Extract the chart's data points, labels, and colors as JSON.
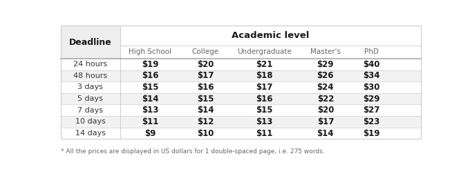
{
  "title": "Academic level",
  "deadline_label": "Deadline",
  "col_headers": [
    "High School",
    "College",
    "Undergraduate",
    "Master's",
    "PhD"
  ],
  "row_headers": [
    "24 hours",
    "48 hours",
    "3 days",
    "5 days",
    "7 days",
    "10 days",
    "14 days"
  ],
  "values": [
    [
      "$19",
      "$20",
      "$21",
      "$29",
      "$40"
    ],
    [
      "$16",
      "$17",
      "$18",
      "$26",
      "$34"
    ],
    [
      "$15",
      "$16",
      "$17",
      "$24",
      "$30"
    ],
    [
      "$14",
      "$15",
      "$16",
      "$22",
      "$29"
    ],
    [
      "$13",
      "$14",
      "$15",
      "$20",
      "$27"
    ],
    [
      "$11",
      "$12",
      "$13",
      "$17",
      "$23"
    ],
    [
      "$9",
      "$10",
      "$11",
      "$14",
      "$19"
    ]
  ],
  "footnote": "* All the prices are displayed in US dollars for 1 double-spaced page, i.e. 275 words.",
  "fig_bg": "#ffffff",
  "deadline_col_bg": "#eeeeee",
  "header_top_bg": "#eeeeee",
  "header_top_right_bg": "#ffffff",
  "subheader_bg": "#ffffff",
  "row_odd_bg": "#ffffff",
  "row_even_bg": "#f2f2f2",
  "border_color": "#cccccc",
  "thick_line_color": "#aaaaaa",
  "deadline_text_color": "#1a1a1a",
  "subheader_text_color": "#666666",
  "value_text_color": "#1a1a1a",
  "deadline_row_text_color": "#333333",
  "footnote_color": "#666666",
  "figsize": [
    6.8,
    2.68
  ],
  "dpi": 100
}
